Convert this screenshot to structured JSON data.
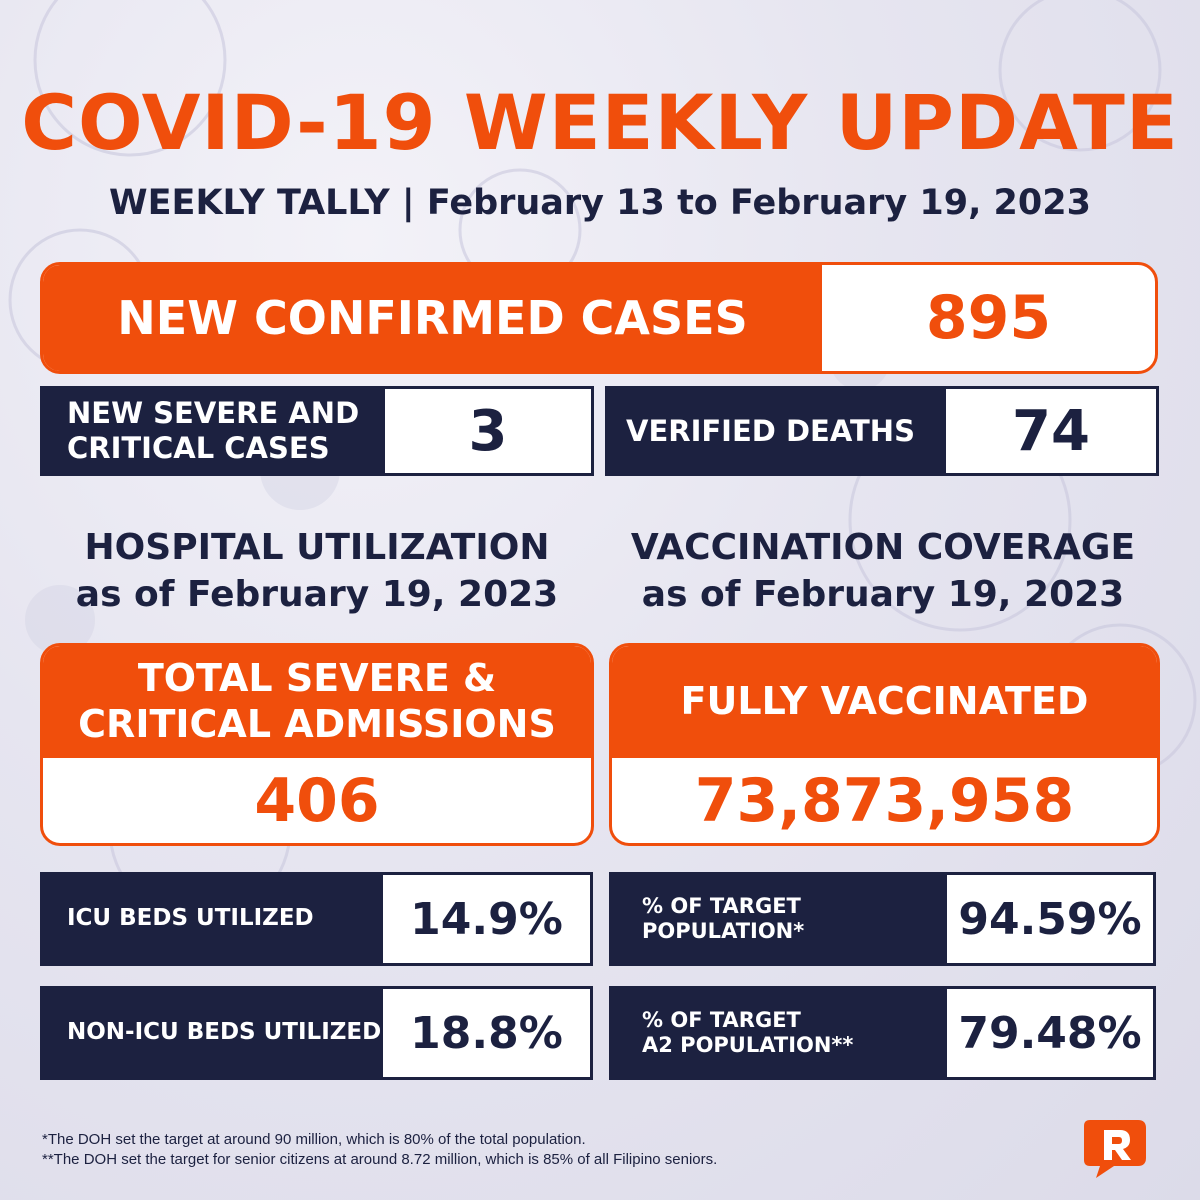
{
  "header": {
    "title": "COVID-19 WEEKLY UPDATE",
    "subtitle": "WEEKLY TALLY | February 13 to February 19, 2023"
  },
  "new_confirmed": {
    "label": "NEW CONFIRMED CASES",
    "value": "895"
  },
  "severe_critical": {
    "label_line1": "NEW SEVERE AND",
    "label_line2": "CRITICAL CASES",
    "value": "3"
  },
  "verified_deaths": {
    "label": "VERIFIED DEATHS",
    "value": "74"
  },
  "hospital": {
    "heading_line1": "HOSPITAL UTILIZATION",
    "heading_line2": "as of February 19, 2023",
    "admissions_label_line1": "TOTAL SEVERE &",
    "admissions_label_line2": "CRITICAL ADMISSIONS",
    "admissions_value": "406",
    "icu_label": "ICU BEDS UTILIZED",
    "icu_value": "14.9%",
    "non_icu_label": "NON-ICU BEDS UTILIZED",
    "non_icu_value": "18.8%"
  },
  "vaccination": {
    "heading_line1": "VACCINATION COVERAGE",
    "heading_line2": "as of February 19, 2023",
    "fully_label": "FULLY VACCINATED",
    "fully_value": "73,873,958",
    "target_label_line1": "% OF TARGET",
    "target_label_line2": "POPULATION*",
    "target_value": "94.59%",
    "a2_label_line1": "% OF TARGET",
    "a2_label_line2": "A2 POPULATION**",
    "a2_value": "79.48%"
  },
  "footnotes": {
    "note1": "*The DOH set the target at around 90 million, which is 80% of the total population.",
    "note2": "**The DOH set the target for senior citizens at around 8.72 million, which is 85% of all Filipino seniors."
  },
  "colors": {
    "orange": "#f04e0c",
    "navy": "#1c2140",
    "background": "#e6e5f0"
  },
  "logo": {
    "icon": "rappler-logo-icon"
  }
}
